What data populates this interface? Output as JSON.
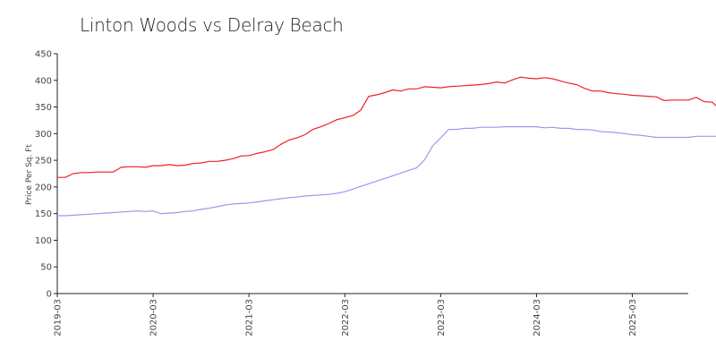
{
  "chart_data": {
    "type": "line",
    "title": "Linton Woods vs Delray Beach",
    "xlabel": "",
    "ylabel": "Price Per Sq. Ft",
    "ylim": [
      0,
      450
    ],
    "yticks": [
      0,
      50,
      100,
      150,
      200,
      250,
      300,
      350,
      400,
      450
    ],
    "xticks": [
      "2019-03",
      "2020-03",
      "2021-03",
      "2022-03",
      "2023-03",
      "2024-03",
      "2025-03"
    ],
    "x_start": "2019-03",
    "x_end": "2025-10",
    "grid": false,
    "legend": "none",
    "series": [
      {
        "color": "#ee2222",
        "values": [
          218,
          218,
          225,
          227,
          227,
          228,
          228,
          228,
          237,
          238,
          238,
          237,
          240,
          240,
          242,
          240,
          241,
          244,
          245,
          248,
          248,
          250,
          253,
          258,
          259,
          263,
          266,
          270,
          280,
          288,
          292,
          298,
          308,
          313,
          319,
          326,
          330,
          334,
          344,
          370,
          373,
          377,
          382,
          380,
          384,
          384,
          388,
          387,
          386,
          388,
          389,
          390,
          391,
          392,
          394,
          397,
          395,
          401,
          406,
          404,
          403,
          405,
          403,
          399,
          395,
          392,
          385,
          380,
          380,
          377,
          375,
          374,
          372,
          371,
          370,
          369,
          362,
          363,
          363,
          363,
          368,
          360,
          359,
          345
        ]
      },
      {
        "color": "#9999ee",
        "values": [
          146,
          146,
          147,
          148,
          149,
          150,
          151,
          152,
          153,
          154,
          155,
          154,
          155,
          150,
          151,
          152,
          154,
          155,
          158,
          160,
          163,
          166,
          168,
          169,
          170,
          172,
          174,
          176,
          178,
          180,
          181,
          183,
          184,
          185,
          186,
          188,
          191,
          196,
          201,
          206,
          211,
          216,
          221,
          226,
          231,
          236,
          251,
          277,
          292,
          308,
          308,
          310,
          310,
          312,
          312,
          312,
          313,
          313,
          313,
          313,
          313,
          311,
          312,
          310,
          310,
          308,
          308,
          307,
          304,
          303,
          302,
          300,
          298,
          297,
          295,
          293,
          293,
          293,
          293,
          293,
          295,
          295,
          295,
          295
        ]
      }
    ]
  }
}
